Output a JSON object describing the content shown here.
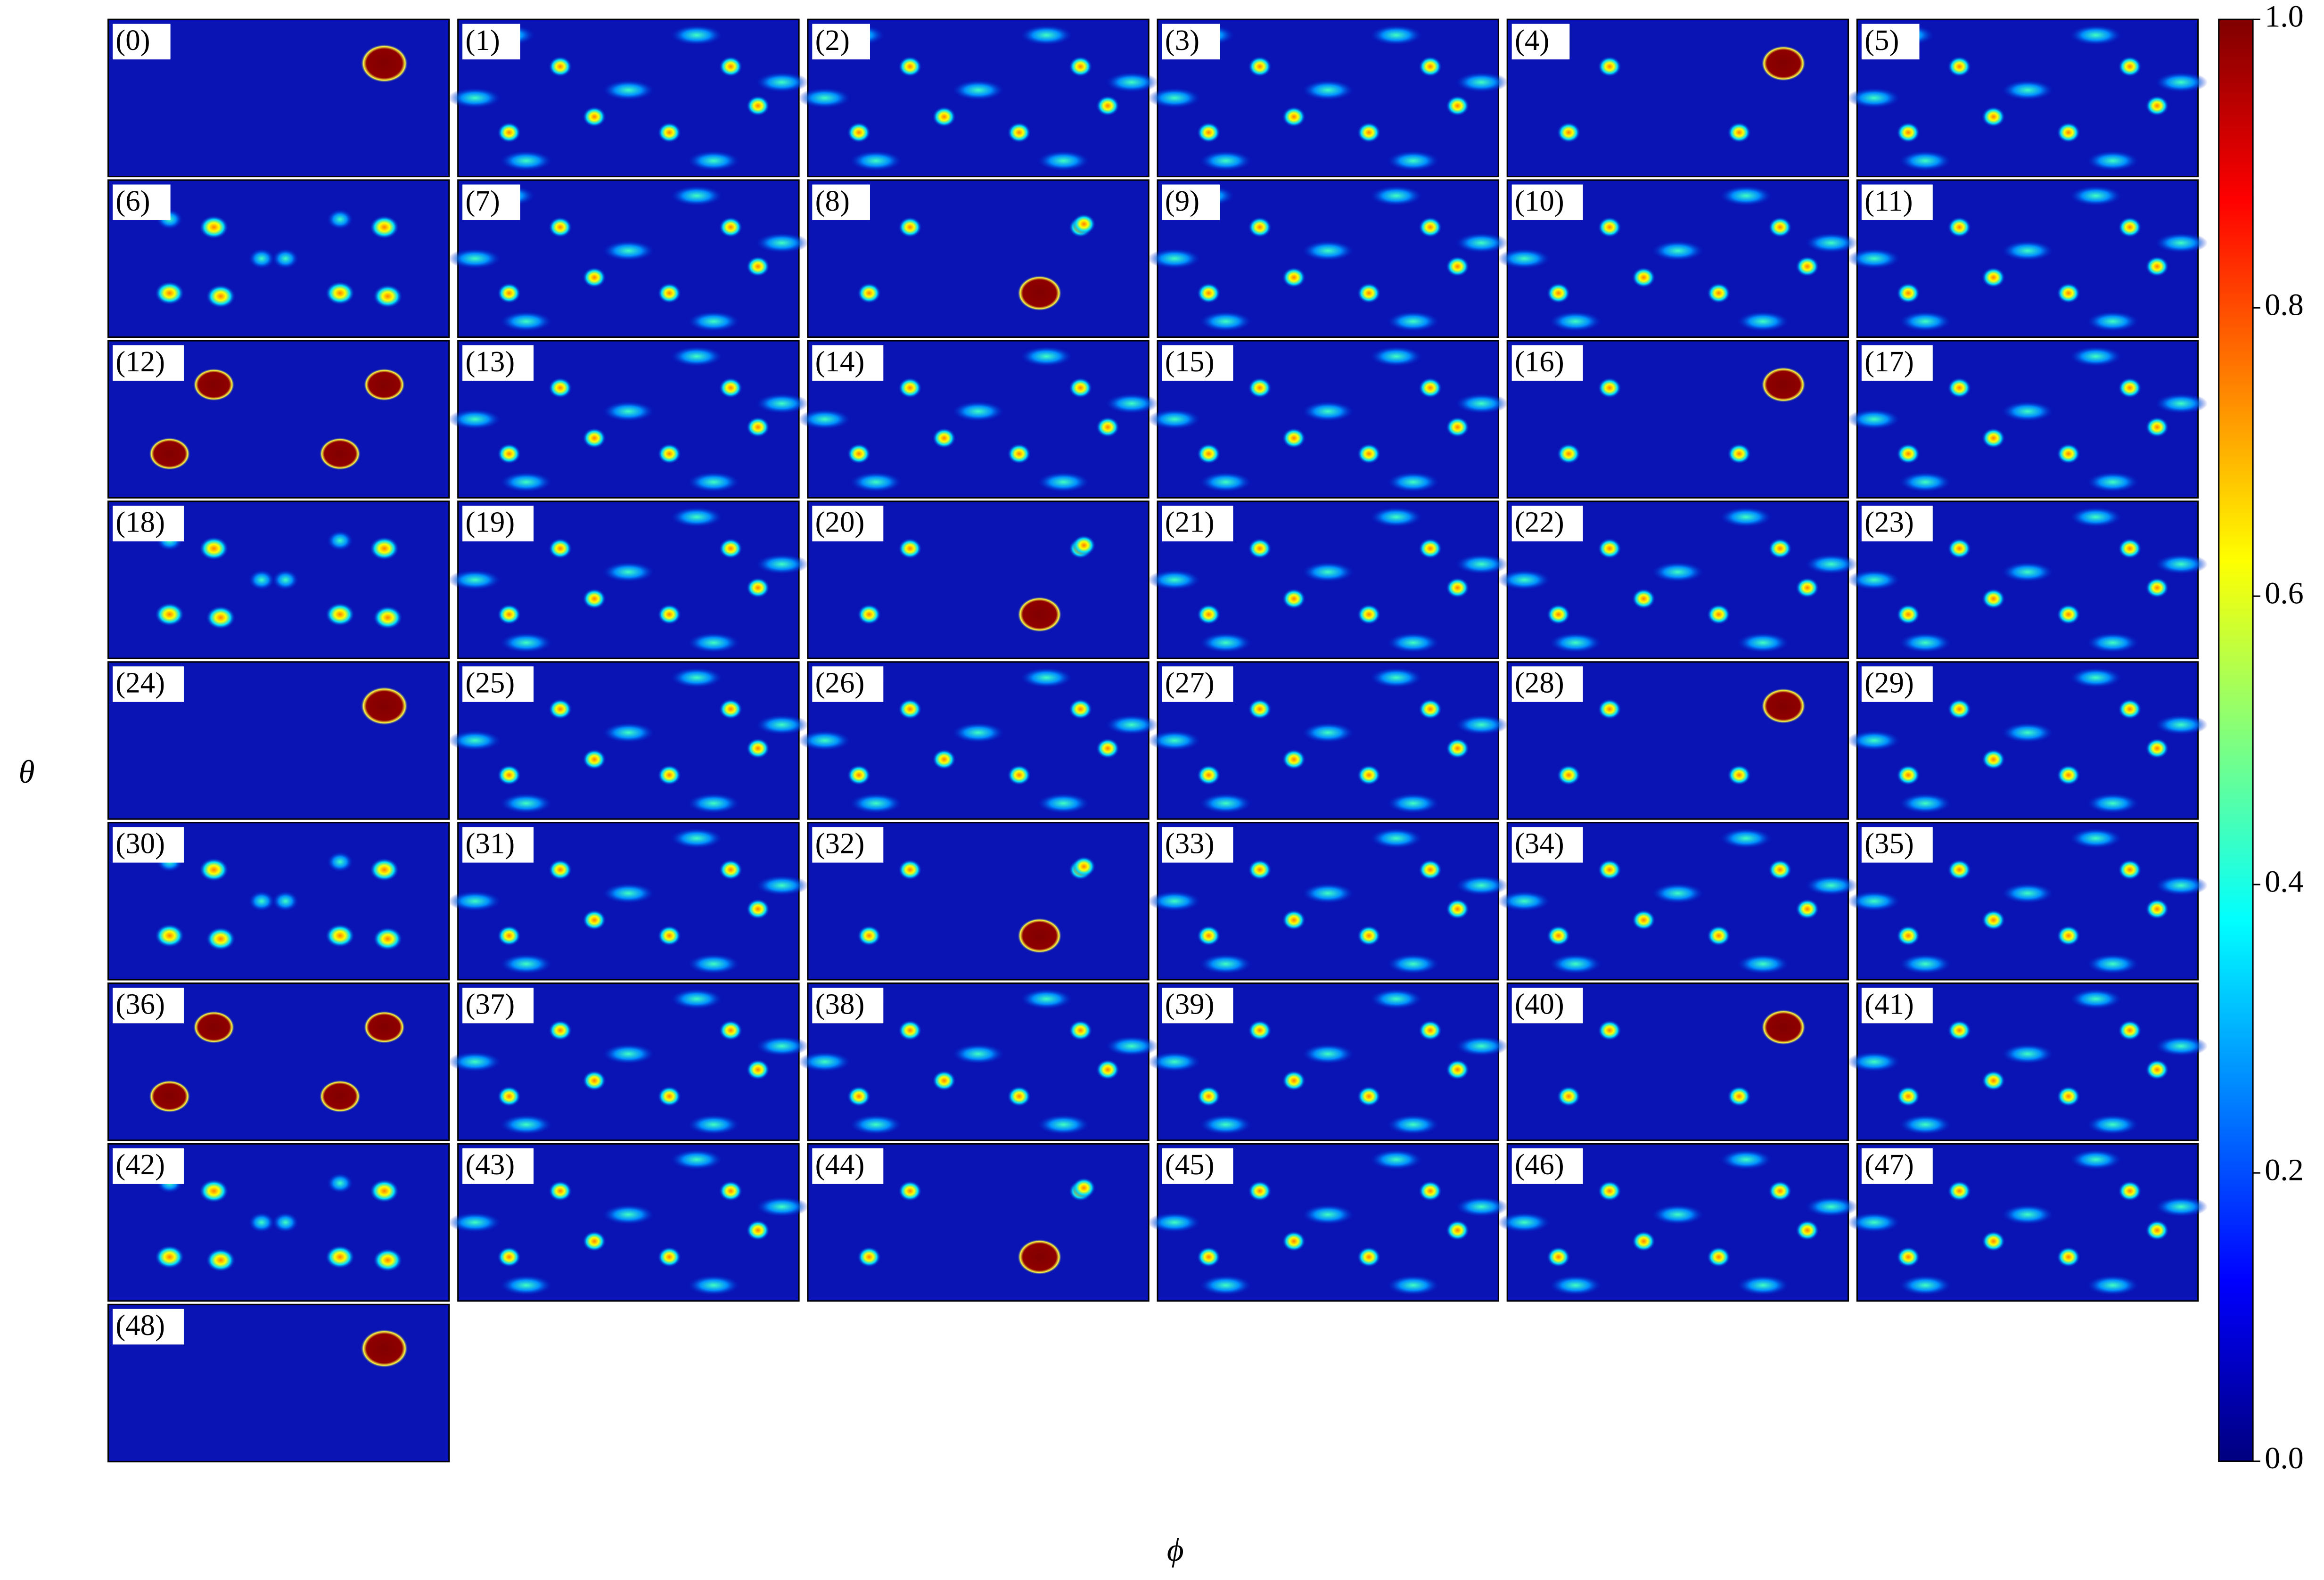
{
  "chart_data": {
    "type": "heatmap-grid",
    "colormap": "jet",
    "panels": [
      "(0)",
      "(1)",
      "(2)",
      "(3)",
      "(4)",
      "(5)",
      "(6)",
      "(7)",
      "(8)",
      "(9)",
      "(10)",
      "(11)",
      "(12)",
      "(13)",
      "(14)",
      "(15)",
      "(16)",
      "(17)",
      "(18)",
      "(19)",
      "(20)",
      "(21)",
      "(22)",
      "(23)",
      "(24)",
      "(25)",
      "(26)",
      "(27)",
      "(28)",
      "(29)",
      "(30)",
      "(31)",
      "(32)",
      "(33)",
      "(34)",
      "(35)",
      "(36)",
      "(37)",
      "(38)",
      "(39)",
      "(40)",
      "(41)",
      "(42)",
      "(43)",
      "(44)",
      "(45)",
      "(46)",
      "(47)",
      "(48)"
    ],
    "xlabel": "ϕ",
    "ylabel": "θ",
    "zlim": [
      0,
      1
    ],
    "zticks": [
      {
        "value": 0,
        "label": "0.0"
      },
      0.2,
      0.4,
      0.6,
      0.8,
      {
        "value": 1,
        "label": "1.0"
      }
    ]
  }
}
